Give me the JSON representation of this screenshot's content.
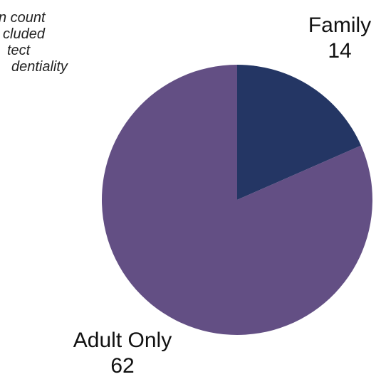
{
  "note": {
    "lines": [
      "n count",
      "cluded",
      "tect",
      "dentiality"
    ]
  },
  "chart_data": {
    "type": "pie",
    "title": "",
    "categories": [
      "Family",
      "Adult Only"
    ],
    "values": [
      14,
      62
    ],
    "colors": [
      "#243664",
      "#634f84"
    ],
    "start_angle_deg": 0,
    "direction": "clockwise",
    "labels": {
      "family": {
        "name": "Family",
        "value": "14"
      },
      "adult": {
        "name": "Adult Only",
        "value": "62"
      }
    }
  }
}
